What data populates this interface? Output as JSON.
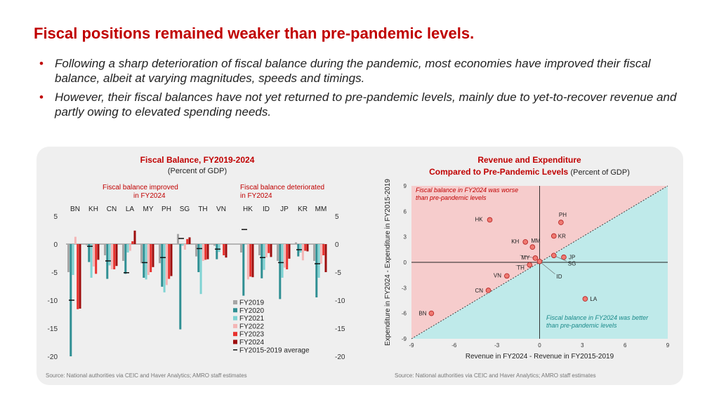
{
  "page": {
    "title": "Fiscal positions remained weaker than pre-pandemic levels.",
    "bullet_char": "•",
    "bullets": [
      "Following a sharp deterioration of fiscal balance during the pandemic, most economies have improved their fiscal balance, albeit at varying magnitudes, speeds and timings.",
      "However, their fiscal balances have not yet returned to pre-pandemic levels, mainly due to yet-to-recover revenue and partly owing to elevated spending needs."
    ]
  },
  "colors": {
    "title": "#c00000",
    "FY2019": "#a6a6a6",
    "FY2020": "#2f8f93",
    "FY2021": "#7fd3d3",
    "FY2022": "#f4b6b6",
    "FY2023": "#e8322e",
    "FY2024": "#9e0d0d",
    "avg": "#111111",
    "worse_region": "#f6cccc",
    "better_region": "#bfeaea"
  },
  "chart_data": [
    {
      "type": "bar",
      "title": "Fiscal Balance, FY2019-2024",
      "subtitle": "(Percent of GDP)",
      "group_labels": [
        "Fiscal balance improved in FY2024",
        "Fiscal balance deteriorated in FY2024"
      ],
      "categories": [
        "BN",
        "KH",
        "CN",
        "LA",
        "MY",
        "PH",
        "SG",
        "TH",
        "VN",
        "HK",
        "ID",
        "JP",
        "KR",
        "MM"
      ],
      "ylim": [
        -20,
        5
      ],
      "yticks": [
        5,
        0,
        -5,
        -10,
        -15,
        -20
      ],
      "ytick_labels": [
        "5",
        "0",
        "-5",
        "-10",
        "-15",
        "-20"
      ],
      "series": [
        {
          "name": "FY2019",
          "color_key": "FY2019",
          "values": [
            -5.0,
            -0.2,
            -2.0,
            -3.0,
            -3.4,
            -3.4,
            1.8,
            -2.2,
            -0.3,
            -1.5,
            -2.0,
            -3.0,
            0.3,
            -3.0
          ]
        },
        {
          "name": "FY2020",
          "color_key": "FY2020",
          "values": [
            -20.0,
            -3.2,
            -6.2,
            -5.3,
            -6.0,
            -7.6,
            -15.2,
            -5.0,
            -2.7,
            -9.2,
            -6.1,
            -9.8,
            -2.2,
            -9.5
          ]
        },
        {
          "name": "FY2021",
          "color_key": "FY2021",
          "values": [
            -5.5,
            -6.0,
            -3.8,
            -1.5,
            -6.3,
            -8.6,
            -0.3,
            -8.9,
            -1.4,
            0.0,
            -4.6,
            -6.0,
            -1.5,
            -6.0
          ]
        },
        {
          "name": "FY2022",
          "color_key": "FY2022",
          "values": [
            1.3,
            -4.0,
            -4.5,
            -1.2,
            -5.5,
            -7.3,
            -1.0,
            -3.0,
            0.0,
            -6.3,
            -2.4,
            -4.2,
            -2.9,
            -3.5
          ]
        },
        {
          "name": "FY2023",
          "color_key": "FY2023",
          "values": [
            -11.6,
            -5.3,
            -4.5,
            0.5,
            -5.0,
            -6.2,
            0.9,
            -2.8,
            -2.0,
            -5.8,
            -1.6,
            -4.5,
            -1.2,
            -2.0
          ]
        },
        {
          "name": "FY2024",
          "color_key": "FY2024",
          "values": [
            -11.5,
            -2.8,
            -3.9,
            2.4,
            -4.1,
            -5.7,
            1.2,
            -2.7,
            -2.4,
            -5.9,
            -2.3,
            -2.6,
            -1.3,
            -5.0
          ]
        }
      ],
      "average": {
        "name": "FY2015-2019 average",
        "values": [
          -10.0,
          -0.4,
          -3.0,
          -5.1,
          -3.3,
          -2.4,
          1.0,
          -0.8,
          -0.9,
          2.6,
          -2.4,
          -3.3,
          -1.0,
          -3.5
        ]
      },
      "source": "Source: National authorities via CEIC and Haver Analytics; AMRO staff estimates"
    },
    {
      "type": "scatter",
      "title": "Revenue and Expenditure",
      "subtitle_bold": "Compared to Pre-Pandemic Levels",
      "subtitle": "(Percent of GDP)",
      "xlabel": "Revenue in FY2024 - Revenue in FY2015-2019",
      "ylabel": "Expenditure in FY2024 - Expenditure in FY2015-2019",
      "xlim": [
        -9,
        9
      ],
      "ylim": [
        -9,
        9
      ],
      "xticks": [
        -9,
        -6,
        -3,
        0,
        3,
        6,
        9
      ],
      "yticks": [
        9,
        6,
        3,
        0,
        -3,
        -6,
        -9
      ],
      "diagonal": "y = x",
      "annotation_worse": [
        "Fiscal balance in FY2024 was worse",
        "than pre-pandemic levels"
      ],
      "annotation_better": [
        "Fiscal balance in FY2024 was better",
        "than pre-pandemic levels"
      ],
      "points": [
        {
          "label": "BN",
          "x": -7.6,
          "y": -6.0
        },
        {
          "label": "CN",
          "x": -3.6,
          "y": -3.3
        },
        {
          "label": "VN",
          "x": -2.3,
          "y": -1.6
        },
        {
          "label": "TH",
          "x": -0.7,
          "y": -0.3
        },
        {
          "label": "HK",
          "x": -3.5,
          "y": 5.0
        },
        {
          "label": "KH",
          "x": -1.0,
          "y": 2.4
        },
        {
          "label": "MM",
          "x": -0.5,
          "y": 1.8
        },
        {
          "label": "MY",
          "x": -0.3,
          "y": 0.5
        },
        {
          "label": "PH",
          "x": 1.5,
          "y": 4.7
        },
        {
          "label": "KR",
          "x": 1.0,
          "y": 3.1
        },
        {
          "label": "JP",
          "x": 1.7,
          "y": 0.6
        },
        {
          "label": "SG",
          "x": 1.0,
          "y": 0.8
        },
        {
          "label": "ID",
          "x": 0.0,
          "y": 0.1
        },
        {
          "label": "LA",
          "x": 3.2,
          "y": -4.3
        }
      ],
      "source": "Source: National authorities via CEIC and Haver Analytics; AMRO staff estimates"
    }
  ]
}
